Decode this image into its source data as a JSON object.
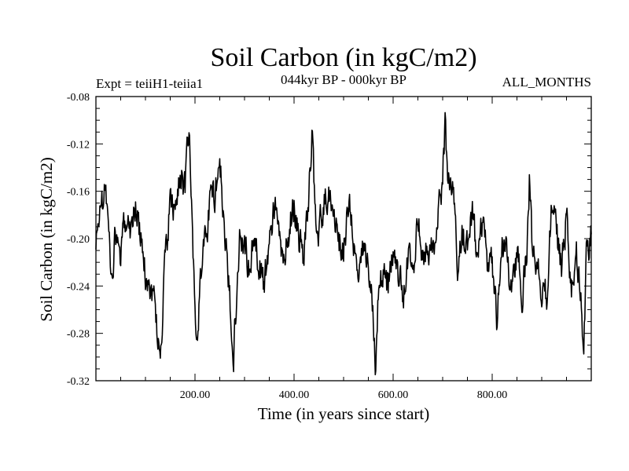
{
  "chart_data": {
    "type": "line",
    "title": "Soil Carbon (in kgC/m2)",
    "subtitle_left": "Expt = teiiH1-teiia1",
    "subtitle_center": "044kyr BP - 000kyr BP",
    "subtitle_right": "ALL_MONTHS",
    "xlabel": "Time (in years since start)",
    "ylabel": "Soil Carbon (in kgC/m2)",
    "xlim": [
      0,
      1000
    ],
    "ylim": [
      -0.32,
      -0.08
    ],
    "x_ticks": [
      200,
      400,
      600,
      800
    ],
    "x_tick_labels": [
      "200.00",
      "400.00",
      "600.00",
      "800.00"
    ],
    "y_ticks": [
      -0.08,
      -0.12,
      -0.16,
      -0.2,
      -0.24,
      -0.28,
      -0.32
    ],
    "y_tick_labels": [
      "-0.08",
      "-0.12",
      "-0.16",
      "-0.20",
      "-0.24",
      "-0.28",
      "-0.32"
    ],
    "grid": false,
    "legend": "none",
    "line_color": "#000000",
    "series": [
      {
        "x": [
          0,
          5,
          10,
          15,
          20,
          25,
          30,
          40,
          50,
          60,
          70,
          80,
          90,
          100,
          110,
          120,
          125,
          130,
          135,
          140,
          150,
          160,
          170,
          180,
          188,
          195,
          200,
          205,
          210,
          220,
          230,
          240,
          250,
          260,
          270,
          278,
          285,
          290,
          300,
          310,
          320,
          330,
          340,
          350,
          360,
          370,
          380,
          390,
          400,
          410,
          420,
          430,
          436,
          442,
          450,
          460,
          470,
          480,
          490,
          500,
          510,
          520,
          530,
          540,
          550,
          560,
          565,
          570,
          580,
          590,
          600,
          610,
          620,
          630,
          640,
          650,
          660,
          670,
          680,
          690,
          700,
          705,
          710,
          720,
          730,
          740,
          750,
          760,
          770,
          780,
          790,
          800,
          810,
          820,
          830,
          840,
          850,
          860,
          870,
          875,
          880,
          890,
          900,
          910,
          920,
          930,
          940,
          950,
          960,
          970,
          980,
          985,
          990,
          1000
        ],
        "y": [
          -0.21,
          -0.19,
          -0.16,
          -0.175,
          -0.15,
          -0.19,
          -0.23,
          -0.2,
          -0.22,
          -0.18,
          -0.19,
          -0.17,
          -0.2,
          -0.23,
          -0.24,
          -0.26,
          -0.28,
          -0.305,
          -0.26,
          -0.22,
          -0.17,
          -0.18,
          -0.14,
          -0.16,
          -0.11,
          -0.2,
          -0.26,
          -0.29,
          -0.24,
          -0.2,
          -0.17,
          -0.16,
          -0.13,
          -0.2,
          -0.25,
          -0.29,
          -0.24,
          -0.2,
          -0.2,
          -0.23,
          -0.2,
          -0.22,
          -0.24,
          -0.2,
          -0.17,
          -0.2,
          -0.22,
          -0.19,
          -0.17,
          -0.2,
          -0.22,
          -0.16,
          -0.11,
          -0.17,
          -0.2,
          -0.17,
          -0.16,
          -0.18,
          -0.2,
          -0.21,
          -0.17,
          -0.2,
          -0.24,
          -0.21,
          -0.22,
          -0.26,
          -0.305,
          -0.24,
          -0.23,
          -0.24,
          -0.21,
          -0.23,
          -0.25,
          -0.22,
          -0.22,
          -0.19,
          -0.21,
          -0.2,
          -0.21,
          -0.19,
          -0.15,
          -0.1,
          -0.15,
          -0.16,
          -0.22,
          -0.19,
          -0.21,
          -0.18,
          -0.22,
          -0.19,
          -0.22,
          -0.22,
          -0.27,
          -0.2,
          -0.22,
          -0.24,
          -0.21,
          -0.25,
          -0.21,
          -0.15,
          -0.2,
          -0.22,
          -0.24,
          -0.25,
          -0.17,
          -0.2,
          -0.22,
          -0.18,
          -0.25,
          -0.22,
          -0.26,
          -0.29,
          -0.22,
          -0.19
        ]
      }
    ]
  }
}
